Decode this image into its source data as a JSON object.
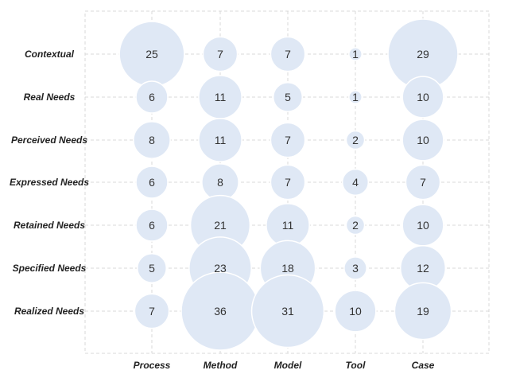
{
  "chart_data": {
    "type": "bubble",
    "x_categories": [
      "Process",
      "Method",
      "Model",
      "Tool",
      "Case"
    ],
    "y_categories": [
      "Contextual",
      "Real Needs",
      "Perceived Needs",
      "Expressed Needs",
      "Retained Needs",
      "Specified Needs",
      "Realized Needs"
    ],
    "values": [
      [
        25,
        7,
        7,
        1,
        29
      ],
      [
        6,
        11,
        5,
        1,
        10
      ],
      [
        8,
        11,
        7,
        2,
        10
      ],
      [
        6,
        8,
        7,
        4,
        7
      ],
      [
        6,
        21,
        11,
        2,
        10
      ],
      [
        5,
        23,
        18,
        3,
        12
      ],
      [
        7,
        36,
        31,
        10,
        19
      ]
    ],
    "bubble_color": "#dfe8f5",
    "grid": true
  }
}
